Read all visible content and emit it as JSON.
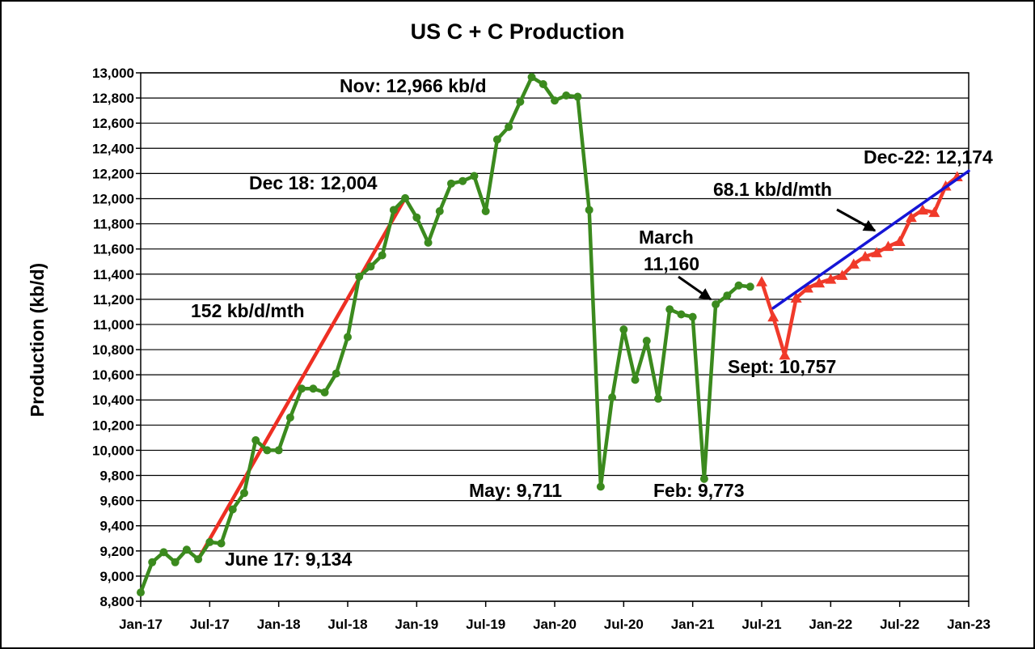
{
  "chart_data": {
    "type": "line",
    "title": "US C + C Production",
    "xlabel": "",
    "ylabel": "Production (kb/d)",
    "ylim": [
      8800,
      13000
    ],
    "y_ticks": [
      "8,800",
      "9,000",
      "9,200",
      "9,400",
      "9,600",
      "9,800",
      "10,000",
      "10,200",
      "10,400",
      "10,600",
      "10,800",
      "11,000",
      "11,200",
      "11,400",
      "11,600",
      "11,800",
      "12,000",
      "12,200",
      "12,400",
      "12,600",
      "12,800",
      "13,000"
    ],
    "x_ticks": [
      "Jan-17",
      "Jul-17",
      "Jan-18",
      "Jul-18",
      "Jan-19",
      "Jul-19",
      "Jan-20",
      "Jul-20",
      "Jan-21",
      "Jul-21",
      "Jan-22",
      "Jul-22",
      "Jan-23"
    ],
    "grid": true,
    "legend": "none",
    "series": [
      {
        "color": "#3b8a1e",
        "marker": "circle",
        "x": [
          "2017-01",
          "2017-02",
          "2017-03",
          "2017-04",
          "2017-05",
          "2017-06",
          "2017-07",
          "2017-08",
          "2017-09",
          "2017-10",
          "2017-11",
          "2017-12",
          "2018-01",
          "2018-02",
          "2018-03",
          "2018-04",
          "2018-05",
          "2018-06",
          "2018-07",
          "2018-08",
          "2018-09",
          "2018-10",
          "2018-11",
          "2018-12",
          "2019-01",
          "2019-02",
          "2019-03",
          "2019-04",
          "2019-05",
          "2019-06",
          "2019-07",
          "2019-08",
          "2019-09",
          "2019-10",
          "2019-11",
          "2019-12",
          "2020-01",
          "2020-02",
          "2020-03",
          "2020-04",
          "2020-05",
          "2020-06",
          "2020-07",
          "2020-08",
          "2020-09",
          "2020-10",
          "2020-11",
          "2020-12",
          "2021-01",
          "2021-02",
          "2021-03",
          "2021-04",
          "2021-05",
          "2021-06"
        ],
        "values": [
          8870,
          9110,
          9190,
          9110,
          9210,
          9134,
          9270,
          9260,
          9530,
          9660,
          10080,
          10000,
          10000,
          10260,
          10490,
          10490,
          10460,
          10610,
          10900,
          11380,
          11460,
          11550,
          11910,
          12004,
          11850,
          11650,
          11900,
          12120,
          12140,
          12180,
          11900,
          12470,
          12570,
          12770,
          12966,
          12910,
          12780,
          12820,
          12810,
          11910,
          9711,
          10420,
          10960,
          10560,
          10870,
          10410,
          11120,
          11080,
          11060,
          9773,
          11160,
          11230,
          11310,
          11300
        ]
      },
      {
        "color": "#f03a2a",
        "marker": "triangle",
        "x": [
          "2021-07",
          "2021-08",
          "2021-09",
          "2021-10",
          "2021-11",
          "2021-12",
          "2022-01",
          "2022-02",
          "2022-03",
          "2022-04",
          "2022-05",
          "2022-06",
          "2022-07",
          "2022-08",
          "2022-09",
          "2022-10",
          "2022-11",
          "2022-12"
        ],
        "values": [
          11340,
          11060,
          10757,
          11210,
          11290,
          11330,
          11360,
          11390,
          11480,
          11540,
          11570,
          11620,
          11660,
          11850,
          11910,
          11890,
          12100,
          12174
        ]
      }
    ],
    "trendlines": [
      {
        "label": "152 kb/d/mth",
        "color": "#ee2f23",
        "from": [
          "2017-06",
          9134
        ],
        "to": [
          "2018-12",
          12004
        ]
      },
      {
        "label": "68.1 kb/d/mth",
        "color": "#1515d6",
        "from": [
          "2021-08",
          11130
        ],
        "to": [
          "2023-01",
          12220
        ]
      }
    ],
    "annotations": [
      {
        "text": "Nov: 12,966 kb/d"
      },
      {
        "text": "Dec 18: 12,004"
      },
      {
        "text": "152 kb/d/mth"
      },
      {
        "text": "June 17: 9,134"
      },
      {
        "text": "March"
      },
      {
        "text": "11,160"
      },
      {
        "text": "May: 9,711"
      },
      {
        "text": "Feb: 9,773"
      },
      {
        "text": "Sept: 10,757"
      },
      {
        "text": "68.1 kb/d/mth"
      },
      {
        "text": "Dec-22: 12,174"
      }
    ]
  }
}
